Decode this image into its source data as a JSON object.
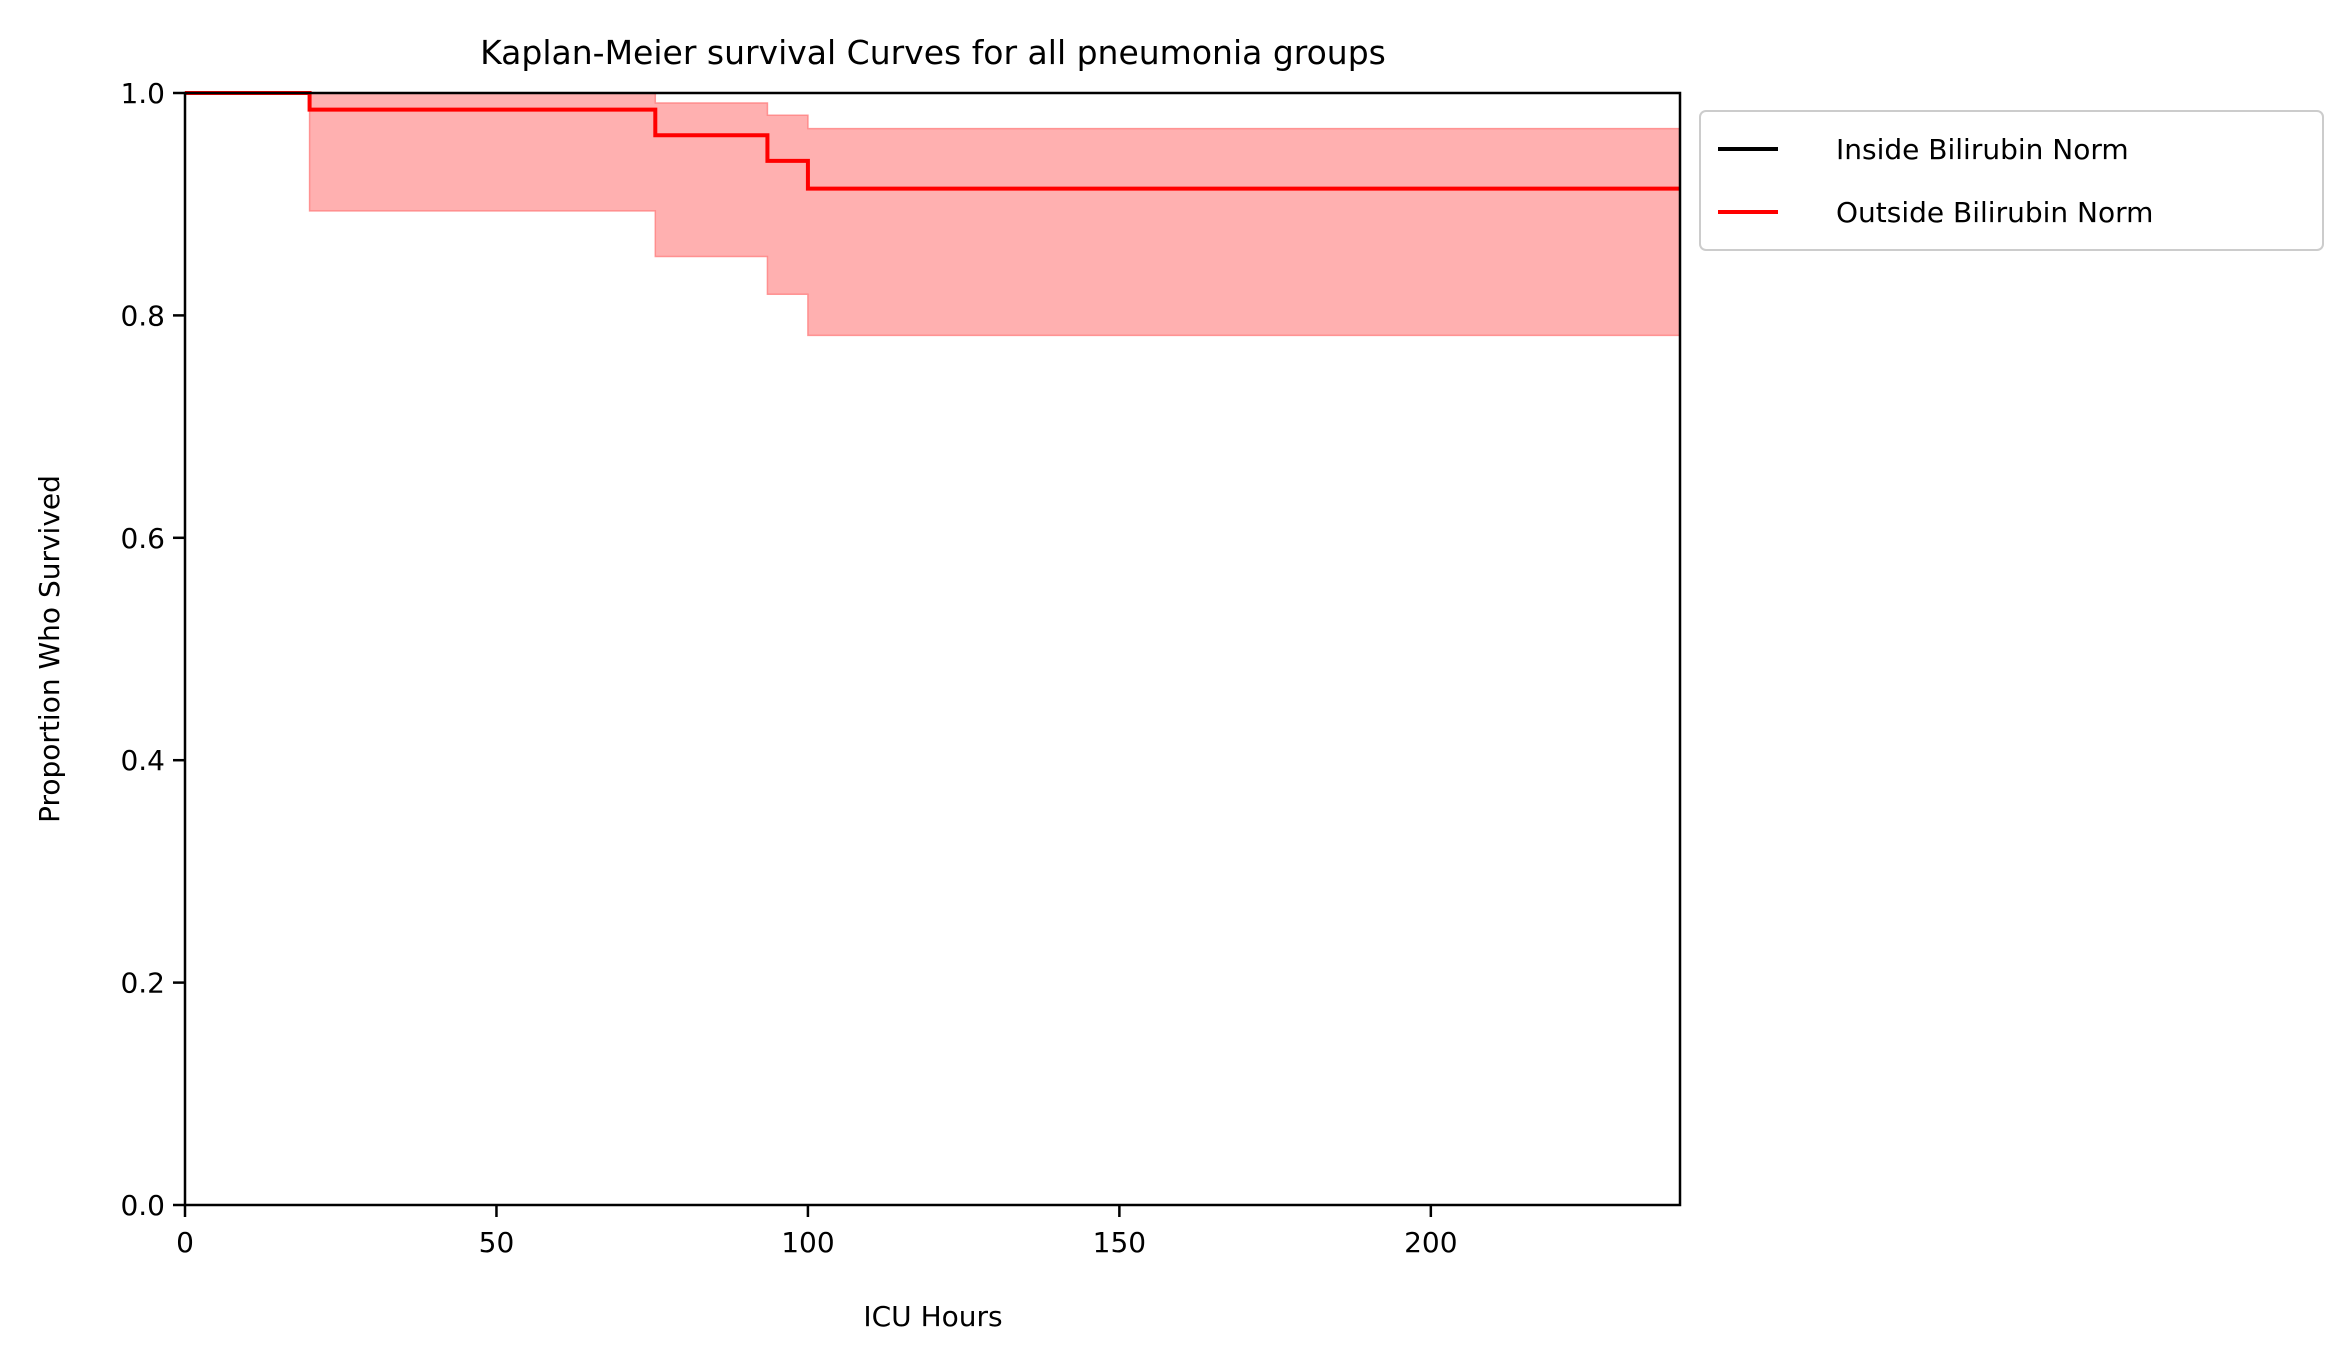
{
  "chart_data": {
    "type": "line",
    "title": "Kaplan-Meier survival Curves for all pneumonia groups",
    "xlabel": "ICU Hours",
    "ylabel": "Proportion Who Survived",
    "xlim": [
      0,
      240
    ],
    "ylim": [
      0.0,
      1.0
    ],
    "xticks": [
      0,
      50,
      100,
      150,
      200
    ],
    "xtick_labels": [
      "0",
      "50",
      "100",
      "150",
      "200"
    ],
    "yticks": [
      0.0,
      0.2,
      0.4,
      0.6,
      0.8,
      1.0
    ],
    "ytick_labels": [
      "0.0",
      "0.2",
      "0.4",
      "0.6",
      "0.8",
      "1.0"
    ],
    "grid": false,
    "legend_position": "outside-top-right",
    "series": [
      {
        "name": "Inside Bilirubin Norm",
        "color": "#000000",
        "step": true,
        "x": [
          0,
          20
        ],
        "y": [
          1.0,
          1.0
        ]
      },
      {
        "name": "Outside Bilirubin Norm",
        "color": "#ff0000",
        "step": true,
        "x": [
          0,
          20,
          75.5,
          93.5,
          100,
          240
        ],
        "y": [
          1.0,
          0.985,
          0.962,
          0.939,
          0.914,
          0.914
        ],
        "ci_lower": [
          1.0,
          0.894,
          0.853,
          0.819,
          0.782,
          0.782
        ],
        "ci_upper": [
          1.0,
          1.0,
          0.991,
          0.98,
          0.968,
          0.968
        ],
        "ci_color": "#ffb0b0"
      }
    ]
  }
}
